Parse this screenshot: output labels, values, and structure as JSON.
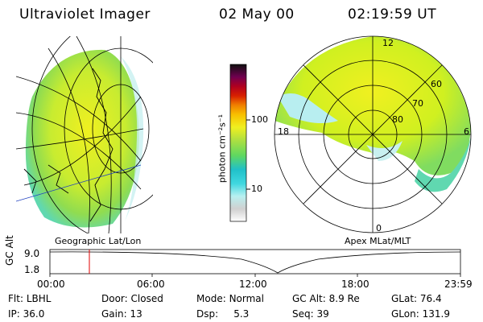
{
  "header": {
    "instrument": "Ultraviolet Imager",
    "date": "02 May 00",
    "time": "02:19:59 UT"
  },
  "colorbar": {
    "unit_label": "photon cm⁻²s⁻¹",
    "ticks": [
      "100",
      "10"
    ],
    "scale": "log",
    "colors": [
      "#ffffff",
      "#d8d8d8",
      "#c8f0f0",
      "#60e0e0",
      "#20c8d8",
      "#60d868",
      "#a8e040",
      "#d8f020",
      "#f0f020",
      "#f8d000",
      "#f89000",
      "#e04000",
      "#c80000",
      "#900020",
      "#600060",
      "#300030",
      "#000000"
    ]
  },
  "geo_panel": {
    "label": "Geographic Lat/Lon"
  },
  "apex_panel": {
    "label": "Apex MLat/MLT",
    "mlt_labels": [
      "12",
      "18",
      "6",
      "0"
    ],
    "mlat_labels": [
      "60",
      "70",
      "80"
    ]
  },
  "altitude_plot": {
    "ylabel": "GC Alt",
    "yticks": [
      "9.0",
      "1.8"
    ],
    "xticks": [
      "00:00",
      "06:00",
      "12:00",
      "18:00",
      "23:59"
    ],
    "marker_time": "02:19:59",
    "marker_color": "#e00000"
  },
  "status": {
    "row1": [
      {
        "label": "Flt:",
        "value": "LBHL"
      },
      {
        "label": "Door:",
        "value": "Closed"
      },
      {
        "label": "Mode:",
        "value": "Normal"
      },
      {
        "label": "GC Alt:",
        "value": "8.9 Re"
      },
      {
        "label": "GLat:",
        "value": "76.4"
      }
    ],
    "row2": [
      {
        "label": "IP:",
        "value": "36.0"
      },
      {
        "label": "Gain:",
        "value": "13"
      },
      {
        "label": "Dsp:",
        "value": "5.3"
      },
      {
        "label": "Seq:",
        "value": "39"
      },
      {
        "label": "GLon:",
        "value": "131.9"
      }
    ]
  }
}
